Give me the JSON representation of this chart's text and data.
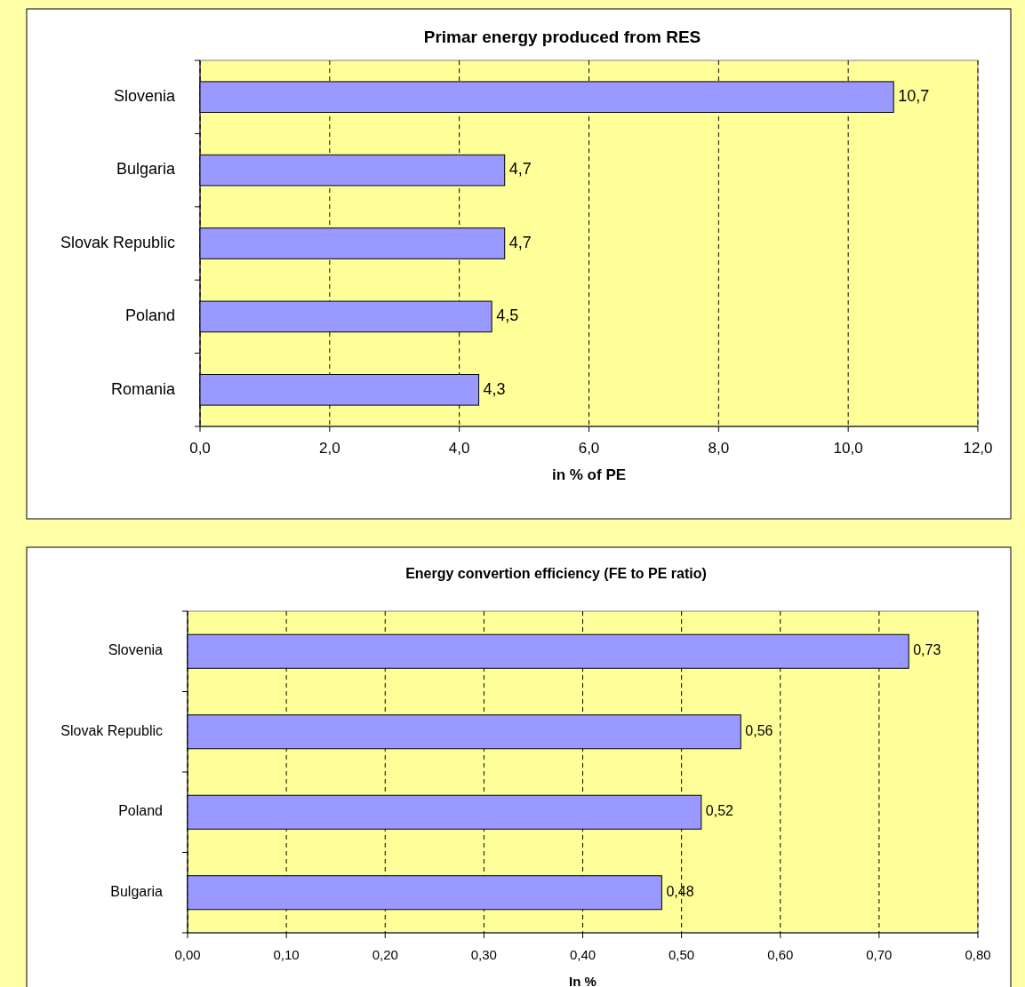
{
  "chart_data": [
    {
      "type": "bar",
      "orientation": "horizontal",
      "title": "Primar energy produced from RES",
      "xlabel": "in % of PE",
      "categories": [
        "Slovenia",
        "Bulgaria",
        "Slovak Republic",
        "Poland",
        "Romania"
      ],
      "values": [
        10.7,
        4.7,
        4.7,
        4.5,
        4.3
      ],
      "color": "#9999ff",
      "value_labels": [
        "10,7",
        "4,7",
        "4,7",
        "4,5",
        "4,3"
      ],
      "xlim": [
        0,
        12
      ],
      "xticks": [
        {
          "value": 0,
          "label": "0,0"
        },
        {
          "value": 2,
          "label": "2,0"
        },
        {
          "value": 4,
          "label": "4,0"
        },
        {
          "value": 6,
          "label": "6,0"
        },
        {
          "value": 8,
          "label": "8,0"
        },
        {
          "value": 10,
          "label": "10,0"
        },
        {
          "value": 12,
          "label": "12,0"
        }
      ],
      "grid": "x"
    },
    {
      "type": "bar",
      "orientation": "horizontal",
      "title": "Energy convertion efficiency (FE to PE ratio)",
      "xlabel": "In %",
      "categories": [
        "Slovenia",
        "Slovak Republic",
        "Poland",
        "Bulgaria"
      ],
      "values": [
        0.73,
        0.56,
        0.52,
        0.48
      ],
      "color": "#9999ff",
      "value_labels": [
        "0,73",
        "0,56",
        "0,52",
        "0,48"
      ],
      "xlim": [
        0,
        0.8
      ],
      "xticks": [
        {
          "value": 0,
          "label": "0,00"
        },
        {
          "value": 0.1,
          "label": "0,10"
        },
        {
          "value": 0.2,
          "label": "0,20"
        },
        {
          "value": 0.3,
          "label": "0,30"
        },
        {
          "value": 0.4,
          "label": "0,40"
        },
        {
          "value": 0.5,
          "label": "0,50"
        },
        {
          "value": 0.6,
          "label": "0,60"
        },
        {
          "value": 0.7,
          "label": "0,70"
        },
        {
          "value": 0.8,
          "label": "0,80"
        }
      ],
      "grid": "x"
    }
  ]
}
